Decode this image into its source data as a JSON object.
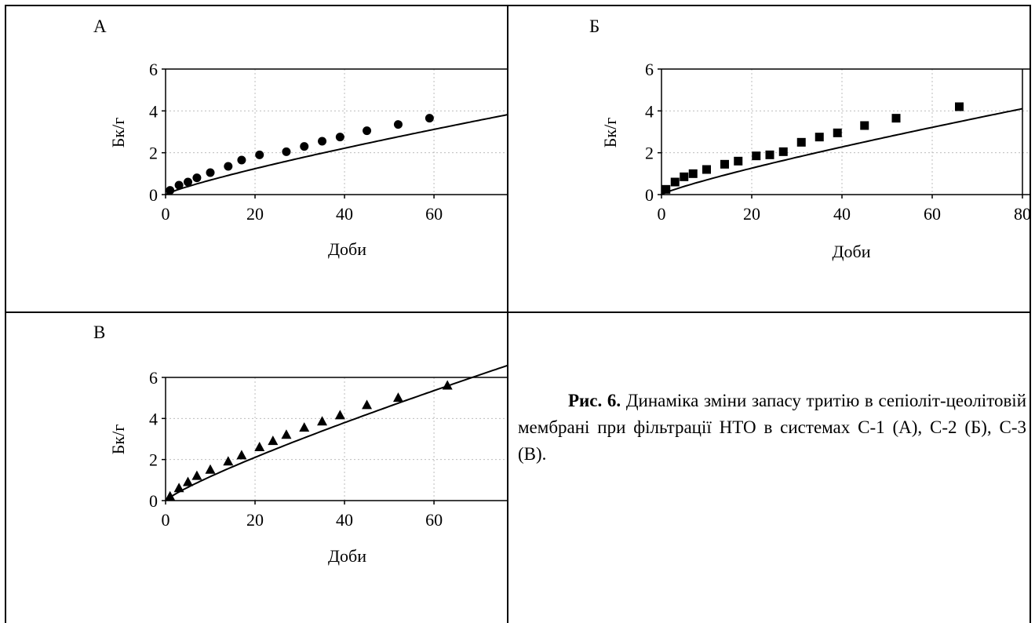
{
  "panels": [
    {
      "letter": "А",
      "chart_data": {
        "type": "scatter",
        "title": "",
        "xlabel": "Доби",
        "ylabel": "Бк/г",
        "xlim": [
          0,
          77
        ],
        "ylim": [
          0,
          6
        ],
        "xticks": [
          "0",
          "20",
          "40",
          "60"
        ],
        "yticks": [
          "0",
          "2",
          "4",
          "6"
        ],
        "grid": true,
        "marker": "circle",
        "series": [
          {
            "x": [
              1,
              3,
              5,
              7,
              10,
              14,
              17,
              21,
              27,
              31,
              35,
              39,
              45,
              52,
              59
            ],
            "y": [
              0.2,
              0.45,
              0.6,
              0.8,
              1.05,
              1.35,
              1.65,
              1.9,
              2.05,
              2.3,
              2.55,
              2.75,
              3.05,
              3.35,
              3.65
            ]
          }
        ],
        "fit": {
          "a": 0.1,
          "p": 0.84,
          "xmax": 77
        }
      }
    },
    {
      "letter": "Б",
      "chart_data": {
        "type": "scatter",
        "title": "",
        "xlabel": "Доби",
        "ylabel": "Бк/г",
        "xlim": [
          0,
          80
        ],
        "ylim": [
          0,
          6
        ],
        "xticks": [
          "0",
          "20",
          "40",
          "60",
          "80"
        ],
        "yticks": [
          "0",
          "2",
          "4",
          "6"
        ],
        "grid": true,
        "marker": "square",
        "series": [
          {
            "x": [
              1,
              3,
              5,
              7,
              10,
              14,
              17,
              21,
              24,
              27,
              31,
              35,
              39,
              45,
              52,
              66
            ],
            "y": [
              0.25,
              0.6,
              0.85,
              1.0,
              1.2,
              1.45,
              1.6,
              1.85,
              1.9,
              2.05,
              2.5,
              2.75,
              2.95,
              3.3,
              3.65,
              4.2
            ]
          }
        ],
        "fit": {
          "a": 0.099,
          "p": 0.85,
          "xmax": 80
        }
      }
    },
    {
      "letter": "В",
      "chart_data": {
        "type": "scatter",
        "title": "",
        "xlabel": "Доби",
        "ylabel": "Бк/г",
        "xlim": [
          0,
          77
        ],
        "ylim": [
          0,
          6
        ],
        "xticks": [
          "0",
          "20",
          "40",
          "60"
        ],
        "yticks": [
          "0",
          "2",
          "4",
          "6"
        ],
        "grid": true,
        "marker": "triangle",
        "series": [
          {
            "x": [
              1,
              3,
              5,
              7,
              10,
              14,
              17,
              21,
              24,
              27,
              31,
              35,
              39,
              45,
              52,
              63
            ],
            "y": [
              0.2,
              0.6,
              0.9,
              1.2,
              1.5,
              1.9,
              2.2,
              2.6,
              2.9,
              3.2,
              3.55,
              3.85,
              4.15,
              4.65,
              5.0,
              5.6
            ]
          }
        ],
        "fit": {
          "a": 0.165,
          "p": 0.85,
          "xmax": 77
        }
      }
    }
  ],
  "caption": {
    "figure_label": "Рис. 6.",
    "text": "Динаміка зміни запасу тритію в сепіоліт-цеолітовій мембрані при фільтрації НТО в системах С-1 (А), С-2 (Б), С-3 (В)."
  }
}
